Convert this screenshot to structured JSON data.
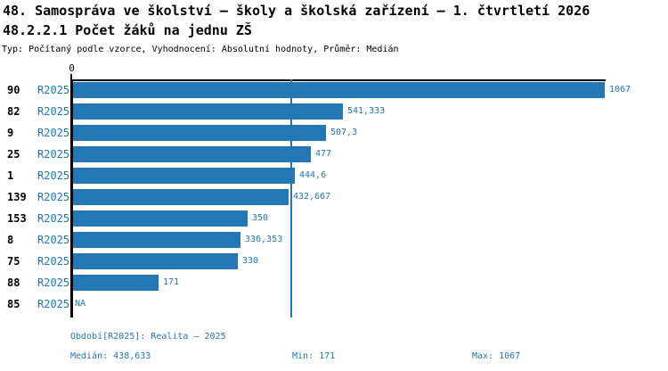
{
  "header": {
    "title": "48. Samospráva ve školství – školy a školská zařízení – 1. čtvrtletí 2026",
    "subtitle": "48.2.2.1 Počet žáků na jednu ZŠ",
    "meta": "Typ: Počítaný podle vzorce, Vyhodnocení: Absolutní hodnoty, Průměr: Medián"
  },
  "colors": {
    "bar": "#2377b4",
    "accent_text": "#2377b4",
    "axis": "#000000",
    "background": "#ffffff"
  },
  "chart_data": {
    "type": "bar",
    "orientation": "horizontal",
    "title": "48.2.2.1 Počet žáků na jednu ZŠ",
    "xlabel": "",
    "ylabel": "",
    "xlim": [
      0,
      1067
    ],
    "axis_zero_label": "0",
    "grid": false,
    "median_line_value": 438.633,
    "period_label": "R2025",
    "categories": [
      "90",
      "82",
      "9",
      "25",
      "1",
      "139",
      "153",
      "8",
      "75",
      "88",
      "85"
    ],
    "values": [
      1067,
      541.333,
      507.3,
      477,
      444.6,
      432.667,
      350,
      336.353,
      330,
      171,
      null
    ],
    "value_labels": [
      "1067",
      "541,333",
      "507,3",
      "477",
      "444,6",
      "432,667",
      "350",
      "336,353",
      "330",
      "171",
      "NA"
    ]
  },
  "footer": {
    "period_info": "Období[R2025]: Realita – 2025",
    "median_label": "Medián: 438,633",
    "min_label": "Min: 171",
    "max_label": "Max: 1067"
  }
}
